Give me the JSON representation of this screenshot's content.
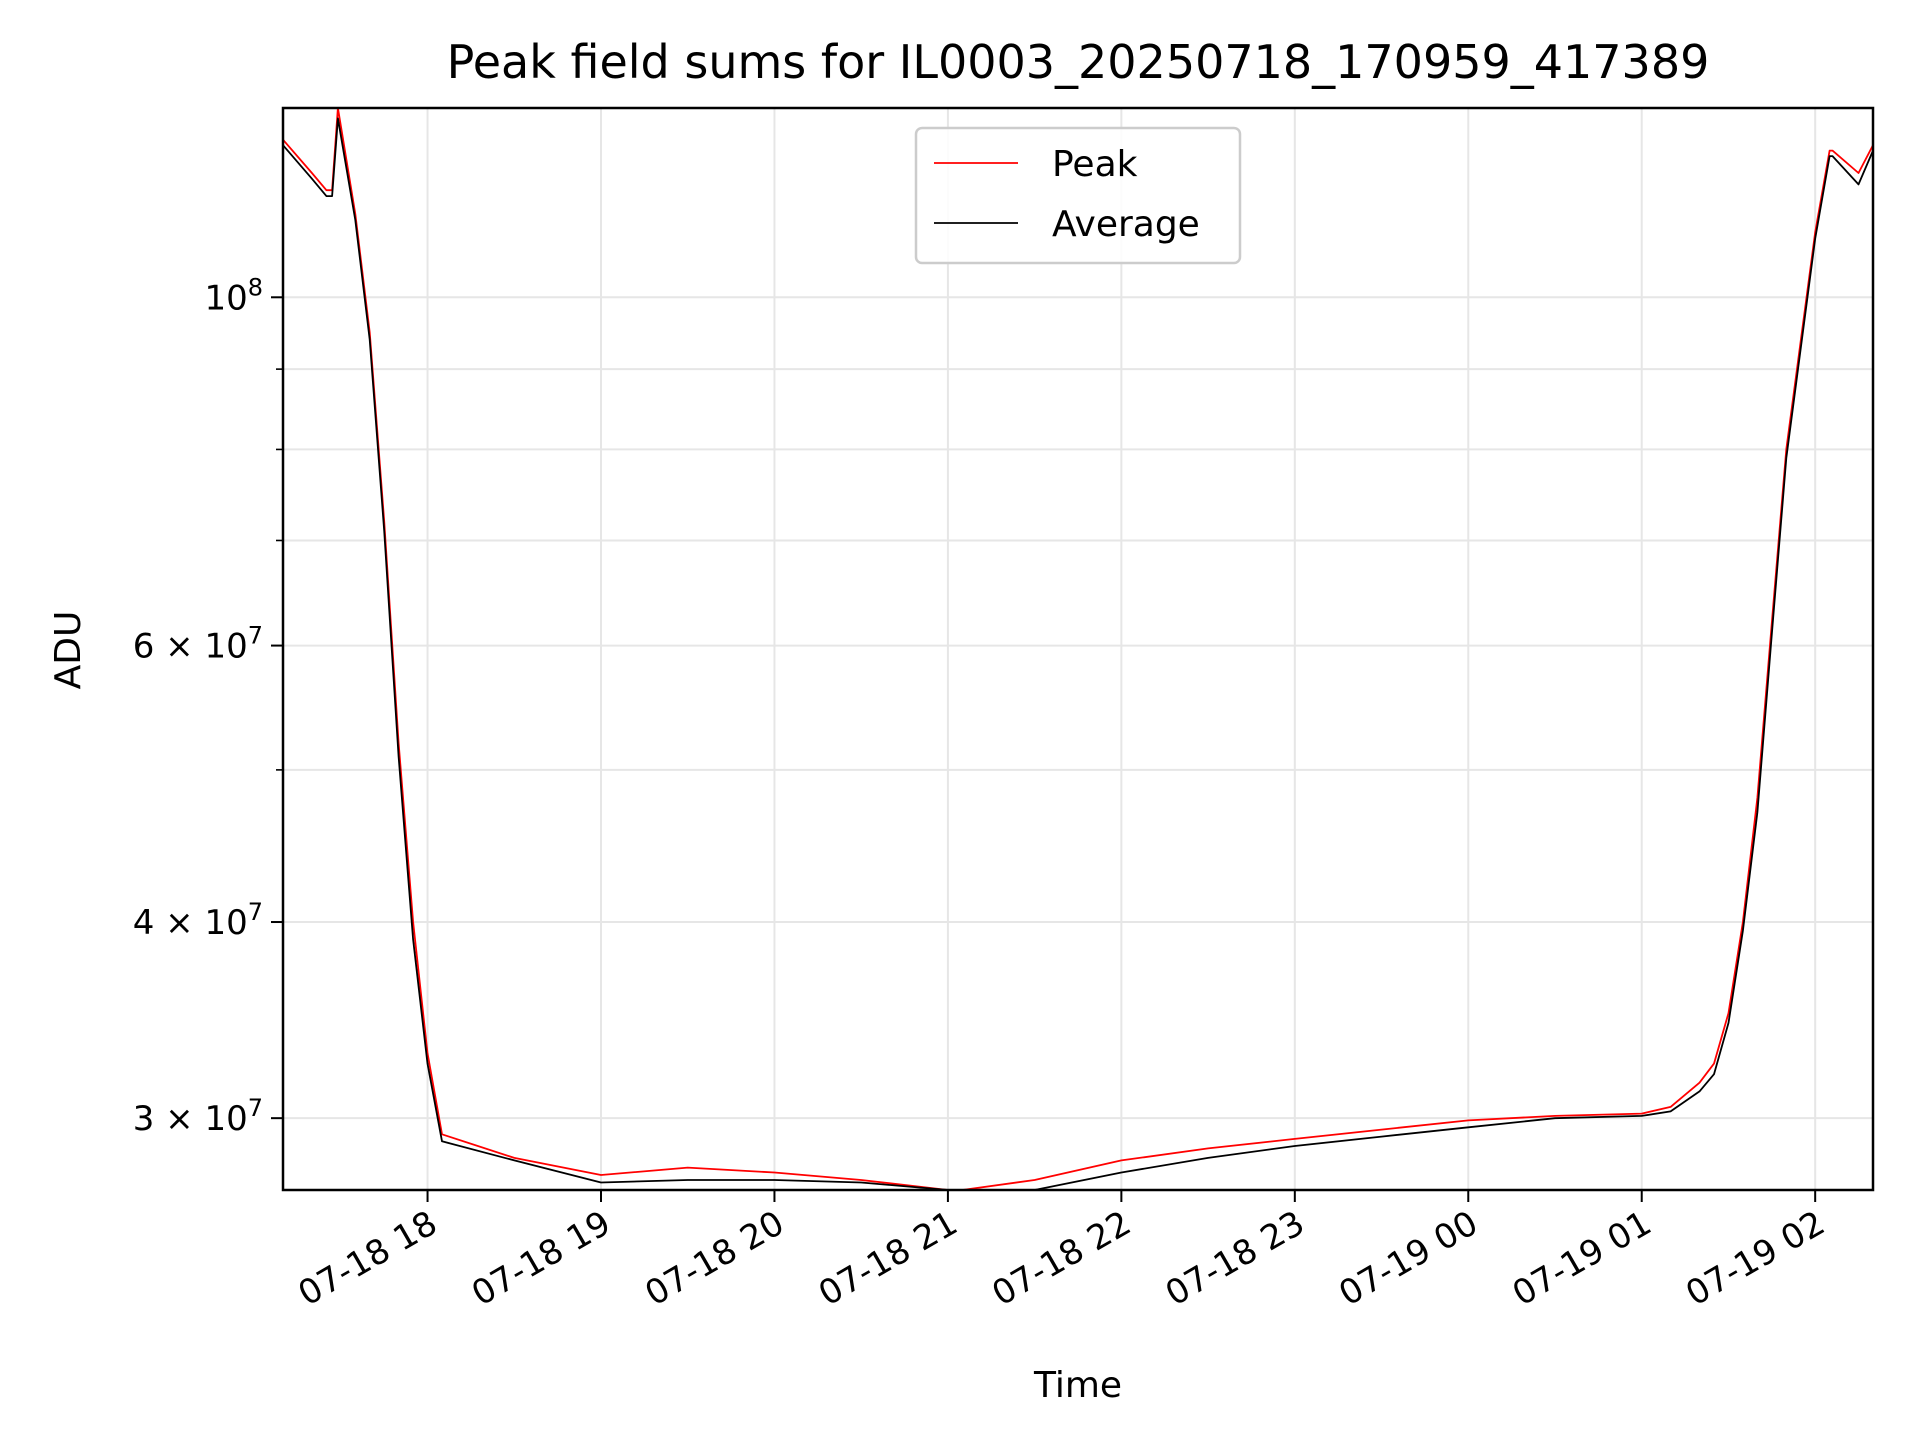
{
  "chart_data": {
    "type": "line",
    "title": "Peak field sums for IL0003_20250718_170959_417389",
    "xlabel": "Time",
    "ylabel": "ADU",
    "y_scale": "log",
    "ylim": [
      27000000,
      132000000
    ],
    "xlim": [
      "07-18 17:10",
      "07-19 02:20"
    ],
    "grid": true,
    "legend_position": "top-center",
    "x_ticks": [
      "07-18 18",
      "07-18 19",
      "07-18 20",
      "07-18 21",
      "07-18 22",
      "07-18 23",
      "07-19 00",
      "07-19 01",
      "07-19 02"
    ],
    "y_ticks": [
      {
        "value": 30000000,
        "label": "3 × 10",
        "exp": "7"
      },
      {
        "value": 40000000,
        "label": "4 × 10",
        "exp": "7"
      },
      {
        "value": 60000000,
        "label": "6 × 10",
        "exp": "7"
      },
      {
        "value": 100000000,
        "label": "10",
        "exp": "8"
      }
    ],
    "y_minor_ticks": [
      50000000,
      70000000,
      80000000,
      90000000
    ],
    "series": [
      {
        "name": "Peak",
        "color": "#ff0000",
        "x": [
          "07-18 17:10",
          "07-18 17:20",
          "07-18 17:25",
          "07-18 17:27",
          "07-18 17:29",
          "07-18 17:35",
          "07-18 17:40",
          "07-18 17:45",
          "07-18 17:50",
          "07-18 17:55",
          "07-18 18:00",
          "07-18 18:05",
          "07-18 18:30",
          "07-18 19:00",
          "07-18 19:30",
          "07-18 20:00",
          "07-18 20:30",
          "07-18 21:00",
          "07-18 21:05",
          "07-18 21:30",
          "07-18 22:00",
          "07-18 22:30",
          "07-18 23:00",
          "07-18 23:30",
          "07-19 00:00",
          "07-19 00:30",
          "07-19 01:00",
          "07-19 01:10",
          "07-19 01:20",
          "07-19 01:25",
          "07-19 01:30",
          "07-19 01:35",
          "07-19 01:40",
          "07-19 01:45",
          "07-19 01:50",
          "07-19 02:00",
          "07-19 02:05",
          "07-19 02:06",
          "07-19 02:15",
          "07-19 02:20"
        ],
        "y": [
          126000000,
          120000000,
          117000000,
          117000000,
          132000000,
          113000000,
          95000000,
          72000000,
          52000000,
          40000000,
          33000000,
          29300000,
          28300000,
          27600000,
          27900000,
          27700000,
          27400000,
          27000000,
          26900000,
          27400000,
          28200000,
          28700000,
          29100000,
          29500000,
          29900000,
          30100000,
          30200000,
          30500000,
          31600000,
          32500000,
          35000000,
          40000000,
          48000000,
          62000000,
          80000000,
          110000000,
          124000000,
          124000000,
          120000000,
          125000000
        ]
      },
      {
        "name": "Average",
        "color": "#000000",
        "x": [
          "07-18 17:10",
          "07-18 17:20",
          "07-18 17:25",
          "07-18 17:27",
          "07-18 17:29",
          "07-18 17:35",
          "07-18 17:40",
          "07-18 17:45",
          "07-18 17:50",
          "07-18 17:55",
          "07-18 18:00",
          "07-18 18:05",
          "07-18 18:30",
          "07-18 19:00",
          "07-18 19:30",
          "07-18 20:00",
          "07-18 20:30",
          "07-18 21:00",
          "07-18 21:05",
          "07-18 21:30",
          "07-18 22:00",
          "07-18 22:30",
          "07-18 23:00",
          "07-18 23:30",
          "07-19 00:00",
          "07-19 00:30",
          "07-19 01:00",
          "07-19 01:10",
          "07-19 01:20",
          "07-19 01:25",
          "07-19 01:30",
          "07-19 01:35",
          "07-19 01:40",
          "07-19 01:45",
          "07-19 01:50",
          "07-19 02:00",
          "07-19 02:05",
          "07-19 02:06",
          "07-19 02:15",
          "07-19 02:20"
        ],
        "y": [
          125000000,
          119000000,
          116000000,
          116000000,
          130000000,
          112000000,
          94000000,
          71000000,
          51000000,
          39000000,
          32500000,
          29000000,
          28200000,
          27300000,
          27400000,
          27400000,
          27300000,
          26900000,
          26700000,
          27000000,
          27700000,
          28300000,
          28800000,
          29200000,
          29600000,
          30000000,
          30100000,
          30300000,
          31200000,
          32000000,
          34500000,
          39500000,
          47000000,
          61000000,
          79000000,
          109000000,
          123000000,
          123000000,
          118000000,
          124000000
        ]
      }
    ]
  }
}
